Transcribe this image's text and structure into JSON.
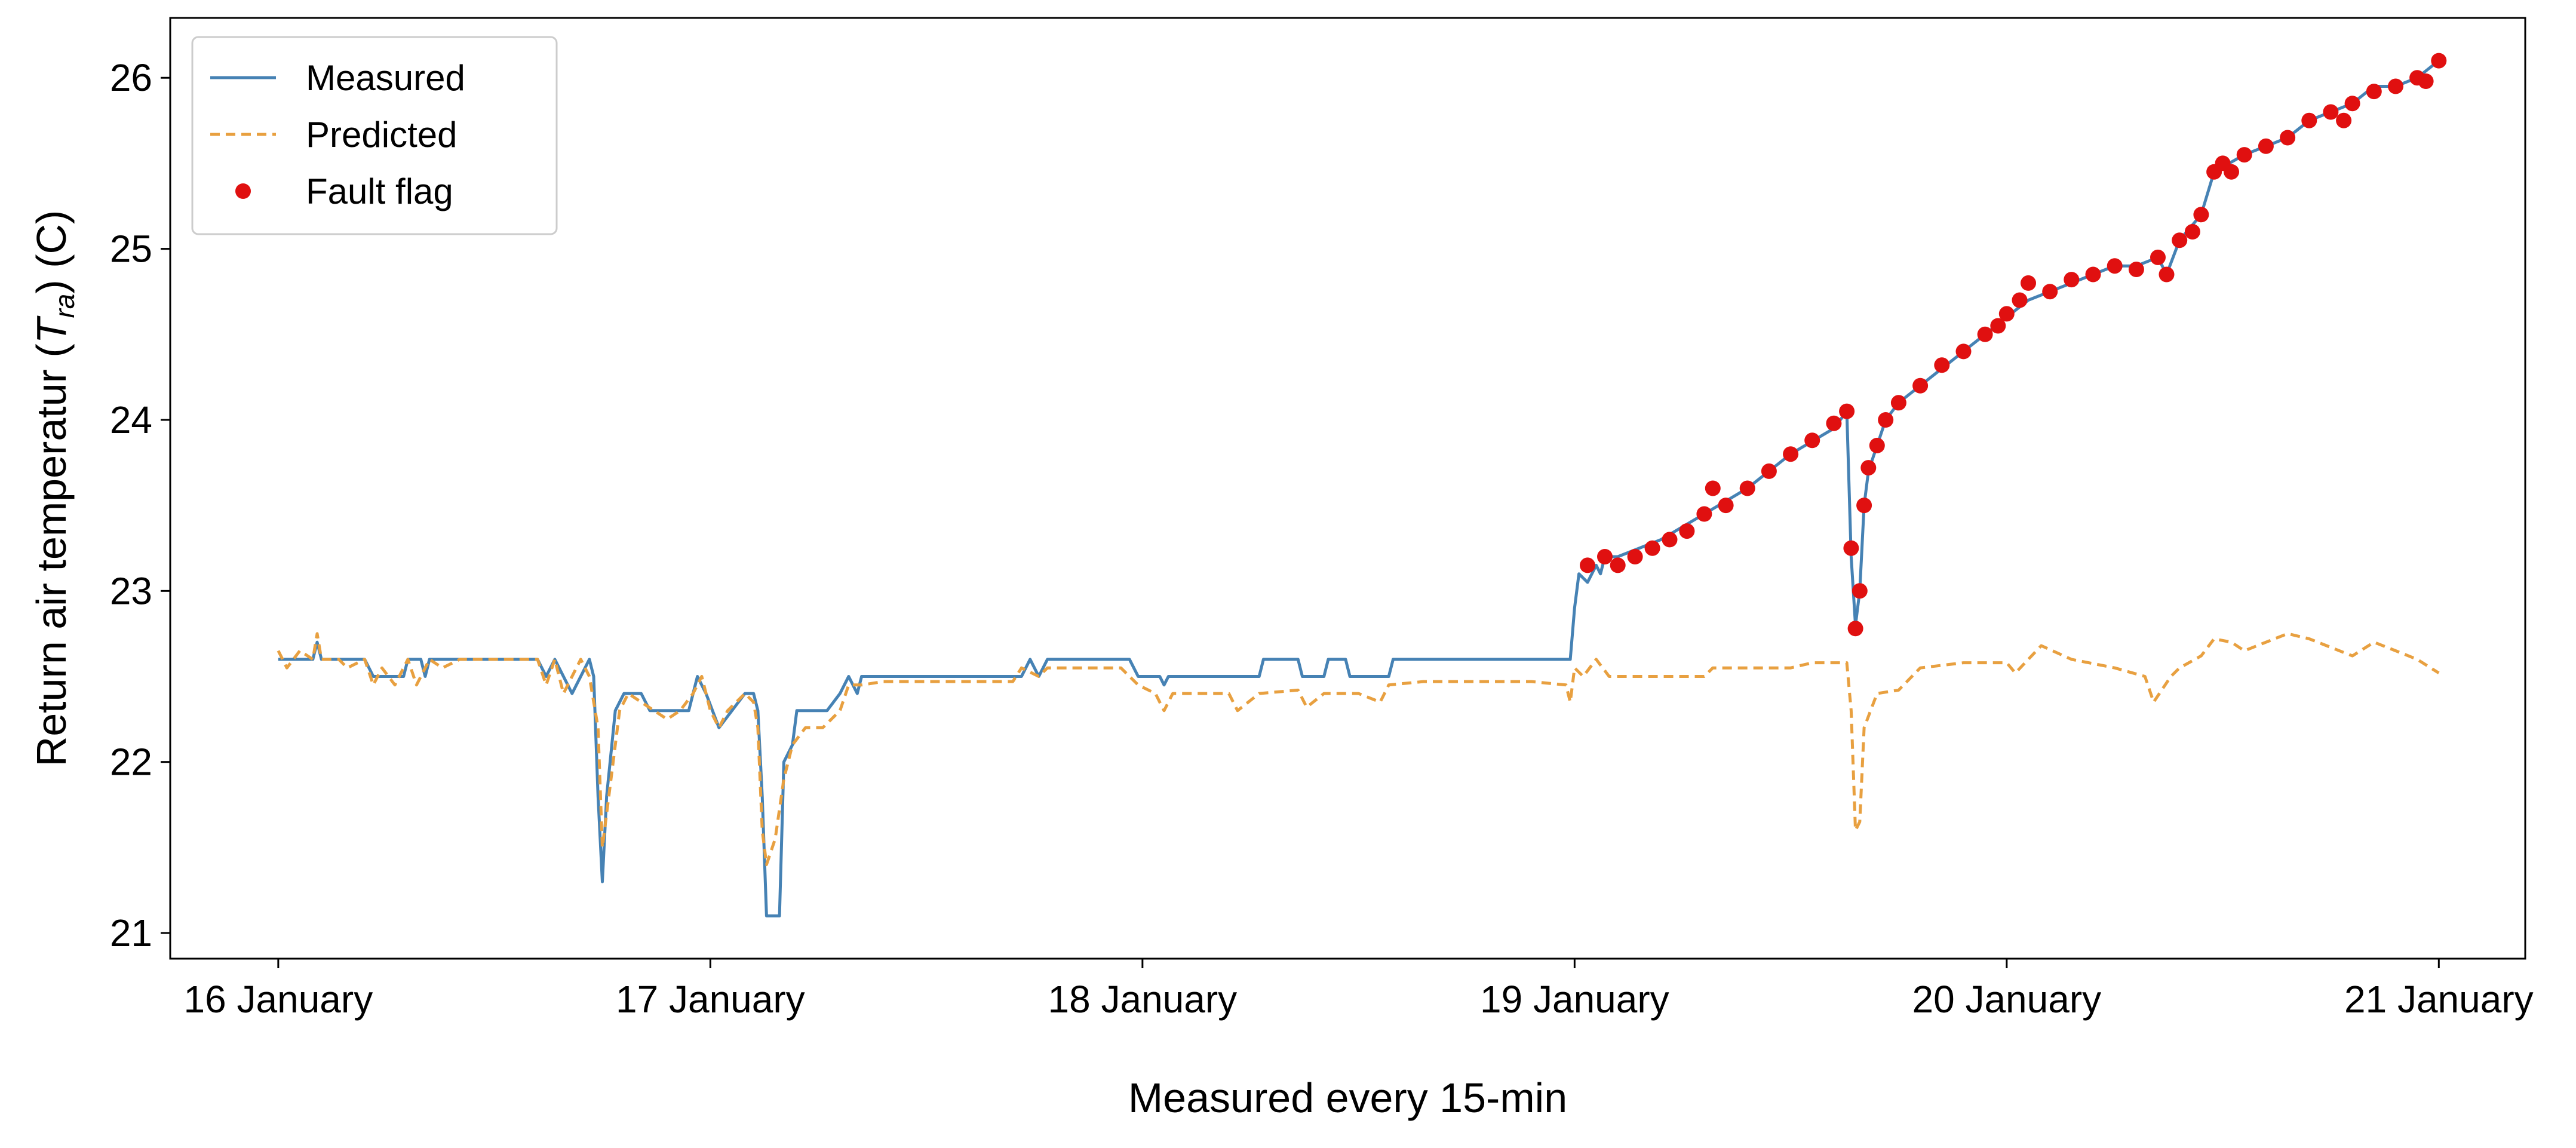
{
  "chart_data": {
    "type": "line",
    "xlabel": "Measured every 15-min",
    "ylabel": {
      "prefix": "Return air temperatur (",
      "var": "T",
      "sub": "ra",
      "suffix": ") (C)"
    },
    "xlim": [
      -0.25,
      5.2
    ],
    "ylim": [
      20.85,
      26.35
    ],
    "x_ticks": [
      {
        "value": 0,
        "label": "16 January"
      },
      {
        "value": 1,
        "label": "17 January"
      },
      {
        "value": 2,
        "label": "18 January"
      },
      {
        "value": 3,
        "label": "19 January"
      },
      {
        "value": 4,
        "label": "20 January"
      },
      {
        "value": 5,
        "label": "21 January"
      }
    ],
    "y_ticks": [
      {
        "value": 21,
        "label": "21"
      },
      {
        "value": 22,
        "label": "22"
      },
      {
        "value": 23,
        "label": "23"
      },
      {
        "value": 24,
        "label": "24"
      },
      {
        "value": 25,
        "label": "25"
      },
      {
        "value": 26,
        "label": "26"
      }
    ],
    "grid": false,
    "legend_position": "top-left",
    "series": [
      {
        "name": "Measured",
        "style": "line",
        "color": "#4682B4",
        "points": [
          [
            0,
            22.6
          ],
          [
            0.08,
            22.6
          ],
          [
            0.09,
            22.7
          ],
          [
            0.1,
            22.6
          ],
          [
            0.2,
            22.6
          ],
          [
            0.22,
            22.5
          ],
          [
            0.29,
            22.5
          ],
          [
            0.3,
            22.6
          ],
          [
            0.33,
            22.6
          ],
          [
            0.34,
            22.5
          ],
          [
            0.35,
            22.6
          ],
          [
            0.6,
            22.6
          ],
          [
            0.62,
            22.5
          ],
          [
            0.64,
            22.6
          ],
          [
            0.66,
            22.5
          ],
          [
            0.68,
            22.4
          ],
          [
            0.7,
            22.5
          ],
          [
            0.72,
            22.6
          ],
          [
            0.73,
            22.5
          ],
          [
            0.74,
            21.8
          ],
          [
            0.75,
            21.3
          ],
          [
            0.76,
            21.8
          ],
          [
            0.78,
            22.3
          ],
          [
            0.8,
            22.4
          ],
          [
            0.84,
            22.4
          ],
          [
            0.86,
            22.3
          ],
          [
            0.9,
            22.3
          ],
          [
            0.95,
            22.3
          ],
          [
            0.97,
            22.5
          ],
          [
            0.99,
            22.4
          ],
          [
            1.02,
            22.2
          ],
          [
            1.05,
            22.3
          ],
          [
            1.08,
            22.4
          ],
          [
            1.1,
            22.4
          ],
          [
            1.11,
            22.3
          ],
          [
            1.12,
            21.8
          ],
          [
            1.13,
            21.1
          ],
          [
            1.16,
            21.1
          ],
          [
            1.17,
            22
          ],
          [
            1.19,
            22.1
          ],
          [
            1.2,
            22.3
          ],
          [
            1.27,
            22.3
          ],
          [
            1.3,
            22.4
          ],
          [
            1.32,
            22.5
          ],
          [
            1.34,
            22.4
          ],
          [
            1.35,
            22.5
          ],
          [
            1.72,
            22.5
          ],
          [
            1.74,
            22.6
          ],
          [
            1.76,
            22.5
          ],
          [
            1.78,
            22.6
          ],
          [
            1.97,
            22.6
          ],
          [
            1.99,
            22.5
          ],
          [
            2.04,
            22.5
          ],
          [
            2.05,
            22.45
          ],
          [
            2.06,
            22.5
          ],
          [
            2.27,
            22.5
          ],
          [
            2.28,
            22.6
          ],
          [
            2.36,
            22.6
          ],
          [
            2.37,
            22.5
          ],
          [
            2.42,
            22.5
          ],
          [
            2.43,
            22.6
          ],
          [
            2.47,
            22.6
          ],
          [
            2.48,
            22.5
          ],
          [
            2.57,
            22.5
          ],
          [
            2.58,
            22.6
          ],
          [
            2.99,
            22.6
          ],
          [
            3,
            22.9
          ],
          [
            3.01,
            23.1
          ],
          [
            3.03,
            23.05
          ],
          [
            3.05,
            23.15
          ],
          [
            3.06,
            23.1
          ],
          [
            3.07,
            23.2
          ],
          [
            3.1,
            23.2
          ],
          [
            3.2,
            23.3
          ],
          [
            3.3,
            23.45
          ],
          [
            3.4,
            23.6
          ],
          [
            3.5,
            23.8
          ],
          [
            3.6,
            23.95
          ],
          [
            3.63,
            24.05
          ],
          [
            3.64,
            23.2
          ],
          [
            3.65,
            22.8
          ],
          [
            3.66,
            23
          ],
          [
            3.67,
            23.5
          ],
          [
            3.68,
            23.7
          ],
          [
            3.7,
            23.85
          ],
          [
            3.72,
            24
          ],
          [
            3.75,
            24.1
          ],
          [
            3.8,
            24.2
          ],
          [
            3.85,
            24.3
          ],
          [
            3.9,
            24.4
          ],
          [
            4,
            24.6
          ],
          [
            4.05,
            24.7
          ],
          [
            4.1,
            24.75
          ],
          [
            4.2,
            24.85
          ],
          [
            4.25,
            24.9
          ],
          [
            4.3,
            24.9
          ],
          [
            4.35,
            24.95
          ],
          [
            4.37,
            24.85
          ],
          [
            4.4,
            25.05
          ],
          [
            4.45,
            25.2
          ],
          [
            4.48,
            25.45
          ],
          [
            4.55,
            25.55
          ],
          [
            4.65,
            25.65
          ],
          [
            4.7,
            25.75
          ],
          [
            4.75,
            25.8
          ],
          [
            4.8,
            25.85
          ],
          [
            4.85,
            25.95
          ],
          [
            4.9,
            25.95
          ],
          [
            4.95,
            26
          ],
          [
            5,
            26.1
          ]
        ]
      },
      {
        "name": "Predicted",
        "style": "dashed",
        "color": "#E8A040",
        "points": [
          [
            0,
            22.65
          ],
          [
            0.02,
            22.55
          ],
          [
            0.05,
            22.65
          ],
          [
            0.08,
            22.6
          ],
          [
            0.09,
            22.75
          ],
          [
            0.1,
            22.6
          ],
          [
            0.14,
            22.6
          ],
          [
            0.16,
            22.55
          ],
          [
            0.2,
            22.6
          ],
          [
            0.22,
            22.45
          ],
          [
            0.24,
            22.55
          ],
          [
            0.27,
            22.45
          ],
          [
            0.3,
            22.6
          ],
          [
            0.32,
            22.45
          ],
          [
            0.35,
            22.6
          ],
          [
            0.38,
            22.55
          ],
          [
            0.42,
            22.6
          ],
          [
            0.6,
            22.6
          ],
          [
            0.62,
            22.45
          ],
          [
            0.64,
            22.6
          ],
          [
            0.66,
            22.4
          ],
          [
            0.68,
            22.5
          ],
          [
            0.7,
            22.6
          ],
          [
            0.72,
            22.5
          ],
          [
            0.74,
            22.2
          ],
          [
            0.75,
            21.5
          ],
          [
            0.77,
            21.9
          ],
          [
            0.79,
            22.3
          ],
          [
            0.81,
            22.4
          ],
          [
            0.84,
            22.35
          ],
          [
            0.87,
            22.3
          ],
          [
            0.9,
            22.25
          ],
          [
            0.93,
            22.3
          ],
          [
            0.96,
            22.4
          ],
          [
            0.98,
            22.5
          ],
          [
            1,
            22.3
          ],
          [
            1.02,
            22.2
          ],
          [
            1.04,
            22.3
          ],
          [
            1.08,
            22.4
          ],
          [
            1.1,
            22.35
          ],
          [
            1.11,
            22.2
          ],
          [
            1.12,
            21.6
          ],
          [
            1.13,
            21.4
          ],
          [
            1.15,
            21.55
          ],
          [
            1.17,
            21.9
          ],
          [
            1.19,
            22.1
          ],
          [
            1.22,
            22.2
          ],
          [
            1.26,
            22.2
          ],
          [
            1.3,
            22.3
          ],
          [
            1.32,
            22.45
          ],
          [
            1.35,
            22.45
          ],
          [
            1.4,
            22.47
          ],
          [
            1.5,
            22.47
          ],
          [
            1.7,
            22.47
          ],
          [
            1.72,
            22.55
          ],
          [
            1.76,
            22.5
          ],
          [
            1.78,
            22.55
          ],
          [
            1.95,
            22.55
          ],
          [
            1.99,
            22.45
          ],
          [
            2.03,
            22.4
          ],
          [
            2.05,
            22.3
          ],
          [
            2.07,
            22.4
          ],
          [
            2.2,
            22.4
          ],
          [
            2.22,
            22.3
          ],
          [
            2.27,
            22.4
          ],
          [
            2.36,
            22.42
          ],
          [
            2.38,
            22.32
          ],
          [
            2.42,
            22.4
          ],
          [
            2.5,
            22.4
          ],
          [
            2.55,
            22.35
          ],
          [
            2.57,
            22.45
          ],
          [
            2.65,
            22.47
          ],
          [
            2.9,
            22.47
          ],
          [
            2.98,
            22.45
          ],
          [
            2.99,
            22.35
          ],
          [
            3,
            22.55
          ],
          [
            3.02,
            22.5
          ],
          [
            3.05,
            22.6
          ],
          [
            3.08,
            22.5
          ],
          [
            3.15,
            22.5
          ],
          [
            3.3,
            22.5
          ],
          [
            3.32,
            22.55
          ],
          [
            3.5,
            22.55
          ],
          [
            3.55,
            22.58
          ],
          [
            3.63,
            22.58
          ],
          [
            3.64,
            22.3
          ],
          [
            3.65,
            21.6
          ],
          [
            3.66,
            21.65
          ],
          [
            3.67,
            22.2
          ],
          [
            3.7,
            22.4
          ],
          [
            3.75,
            22.42
          ],
          [
            3.8,
            22.55
          ],
          [
            3.9,
            22.58
          ],
          [
            4,
            22.58
          ],
          [
            4.02,
            22.52
          ],
          [
            4.05,
            22.6
          ],
          [
            4.08,
            22.68
          ],
          [
            4.15,
            22.6
          ],
          [
            4.25,
            22.55
          ],
          [
            4.32,
            22.5
          ],
          [
            4.34,
            22.35
          ],
          [
            4.38,
            22.5
          ],
          [
            4.4,
            22.55
          ],
          [
            4.45,
            22.62
          ],
          [
            4.48,
            22.72
          ],
          [
            4.52,
            22.7
          ],
          [
            4.55,
            22.65
          ],
          [
            4.6,
            22.7
          ],
          [
            4.65,
            22.75
          ],
          [
            4.7,
            22.72
          ],
          [
            4.75,
            22.67
          ],
          [
            4.8,
            22.62
          ],
          [
            4.85,
            22.7
          ],
          [
            4.9,
            22.65
          ],
          [
            4.95,
            22.6
          ],
          [
            5,
            22.52
          ]
        ]
      },
      {
        "name": "Fault flag",
        "style": "markers",
        "color": "#E01010",
        "points": [
          [
            3.03,
            23.15
          ],
          [
            3.07,
            23.2
          ],
          [
            3.1,
            23.15
          ],
          [
            3.14,
            23.2
          ],
          [
            3.18,
            23.25
          ],
          [
            3.22,
            23.3
          ],
          [
            3.26,
            23.35
          ],
          [
            3.3,
            23.45
          ],
          [
            3.32,
            23.6
          ],
          [
            3.35,
            23.5
          ],
          [
            3.4,
            23.6
          ],
          [
            3.45,
            23.7
          ],
          [
            3.5,
            23.8
          ],
          [
            3.55,
            23.88
          ],
          [
            3.6,
            23.98
          ],
          [
            3.63,
            24.05
          ],
          [
            3.64,
            23.25
          ],
          [
            3.65,
            22.78
          ],
          [
            3.66,
            23
          ],
          [
            3.67,
            23.5
          ],
          [
            3.68,
            23.72
          ],
          [
            3.7,
            23.85
          ],
          [
            3.72,
            24
          ],
          [
            3.75,
            24.1
          ],
          [
            3.8,
            24.2
          ],
          [
            3.85,
            24.32
          ],
          [
            3.9,
            24.4
          ],
          [
            3.95,
            24.5
          ],
          [
            3.98,
            24.55
          ],
          [
            4,
            24.62
          ],
          [
            4.03,
            24.7
          ],
          [
            4.05,
            24.8
          ],
          [
            4.1,
            24.75
          ],
          [
            4.15,
            24.82
          ],
          [
            4.2,
            24.85
          ],
          [
            4.25,
            24.9
          ],
          [
            4.3,
            24.88
          ],
          [
            4.35,
            24.95
          ],
          [
            4.37,
            24.85
          ],
          [
            4.4,
            25.05
          ],
          [
            4.43,
            25.1
          ],
          [
            4.45,
            25.2
          ],
          [
            4.48,
            25.45
          ],
          [
            4.5,
            25.5
          ],
          [
            4.52,
            25.45
          ],
          [
            4.55,
            25.55
          ],
          [
            4.6,
            25.6
          ],
          [
            4.65,
            25.65
          ],
          [
            4.7,
            25.75
          ],
          [
            4.75,
            25.8
          ],
          [
            4.78,
            25.75
          ],
          [
            4.8,
            25.85
          ],
          [
            4.85,
            25.92
          ],
          [
            4.9,
            25.95
          ],
          [
            4.95,
            26
          ],
          [
            4.97,
            25.98
          ],
          [
            5,
            26.1
          ]
        ]
      }
    ]
  }
}
